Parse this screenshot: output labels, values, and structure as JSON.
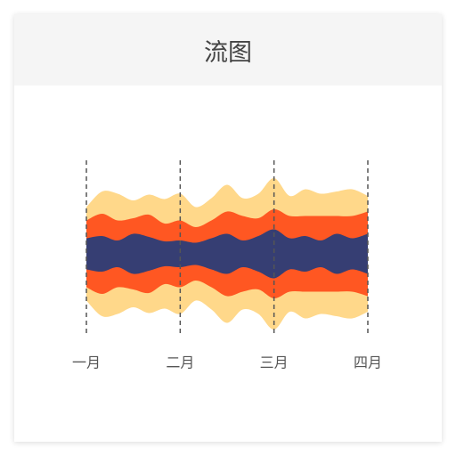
{
  "chart_data": {
    "type": "stream",
    "title": "流图",
    "categories": [
      "一月",
      null,
      null,
      null,
      null,
      null,
      "二月",
      null,
      null,
      null,
      null,
      null,
      "三月",
      null,
      null,
      null,
      null,
      null,
      "四月"
    ],
    "series": [
      {
        "color": "#363e73",
        "values": [
          35,
          40,
          30,
          45,
          38,
          28,
          30,
          25,
          35,
          45,
          30,
          40,
          55,
          35,
          40,
          30,
          45,
          35,
          45
        ]
      },
      {
        "color": "#ff5722",
        "values": [
          40,
          50,
          45,
          35,
          50,
          40,
          45,
          35,
          40,
          50,
          55,
          40,
          45,
          50,
          45,
          55,
          40,
          50,
          50
        ]
      },
      {
        "color": "#ffd88a",
        "values": [
          30,
          50,
          60,
          40,
          45,
          55,
          60,
          45,
          50,
          60,
          40,
          55,
          70,
          45,
          60,
          50,
          55,
          60,
          35
        ]
      }
    ]
  }
}
